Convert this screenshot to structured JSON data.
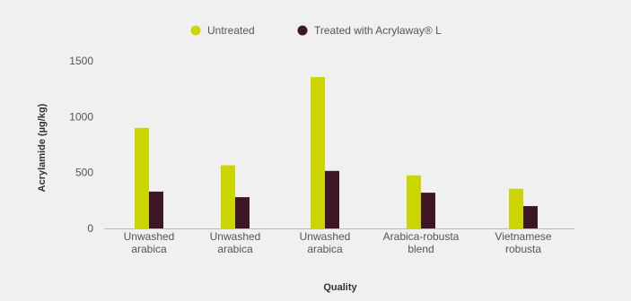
{
  "chart_data": {
    "type": "bar",
    "categories": [
      [
        "Unwashed",
        "arabica"
      ],
      [
        "Unwashed",
        "arabica"
      ],
      [
        "Unwashed",
        "arabica"
      ],
      [
        "Arabica-robusta",
        "blend"
      ],
      [
        "Vietnamese",
        "robusta"
      ]
    ],
    "series": [
      {
        "name": "Untreated",
        "color": "#cdd500",
        "values": [
          900,
          565,
          1355,
          475,
          355
        ]
      },
      {
        "name": "Treated with Acrylaway® L",
        "color": "#3d1628",
        "values": [
          330,
          280,
          515,
          320,
          200
        ]
      }
    ],
    "xlabel": "Quality",
    "ylabel": "Acrylamide (µg/kg)",
    "ylim": [
      0,
      1500
    ],
    "yticks": [
      0,
      500,
      1000,
      1500
    ],
    "grid": false,
    "legend_position": "top-center"
  }
}
